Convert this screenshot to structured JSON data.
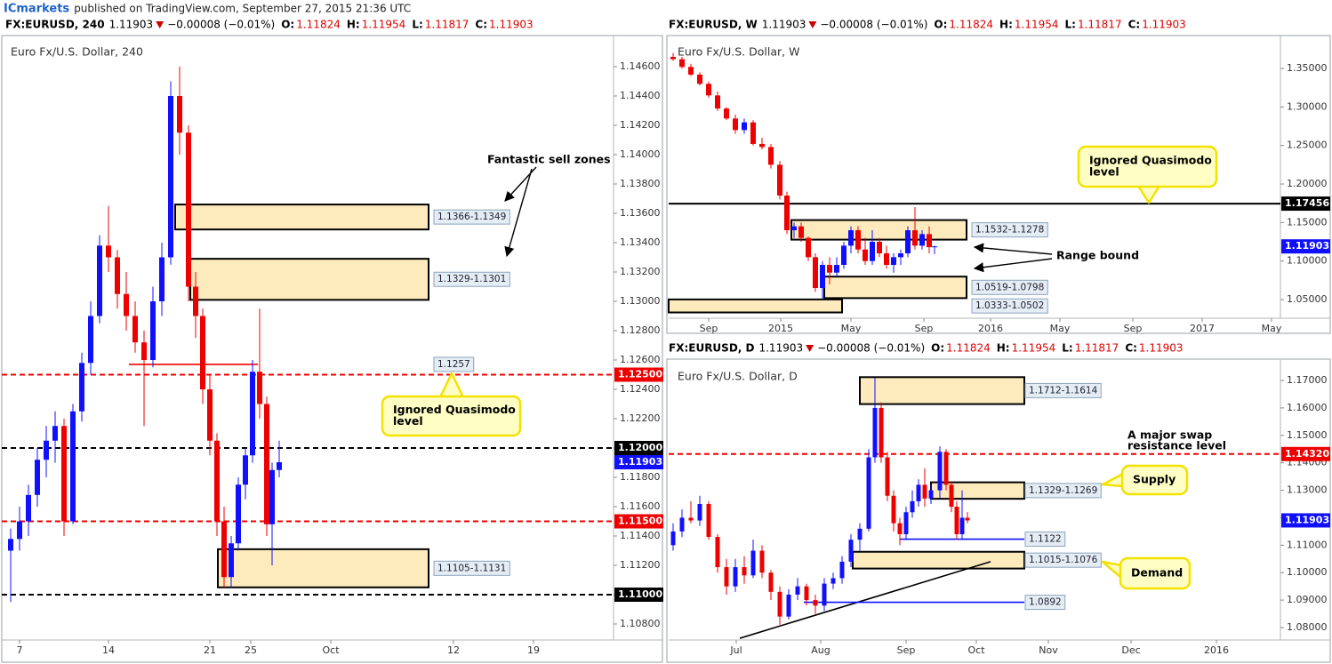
{
  "header": {
    "publisher": "ICmarkets",
    "text": "published on TradingView.com, September 27, 2015 21:36 UTC"
  },
  "chart_data": [
    {
      "type": "candlestick",
      "symbol": "FX:EURUSD, 240",
      "last": 1.11903,
      "change": "−0.00008 (−0.01%)",
      "ohlc": [
        {
          "label": "O:",
          "value": 1.11824
        },
        {
          "label": "H:",
          "value": 1.11954
        },
        {
          "label": "L:",
          "value": 1.11817
        },
        {
          "label": "C:",
          "value": 1.11903
        }
      ],
      "title": "Euro Fx/U.S. Dollar, 240",
      "colors": {
        "up": "#1010ff",
        "down": "#ee0000",
        "last": "#1010ff"
      },
      "xlim": [
        0,
        688
      ],
      "xticks": [
        {
          "value": 20,
          "label": "7"
        },
        {
          "value": 120,
          "label": "14"
        },
        {
          "value": 234,
          "label": "21"
        },
        {
          "value": 280,
          "label": "25"
        },
        {
          "value": 370,
          "label": "Oct"
        },
        {
          "value": 508,
          "label": "12"
        },
        {
          "value": 598,
          "label": "19"
        }
      ],
      "ylim": [
        1.10691,
        1.14812
      ],
      "yticks": [
        {
          "value": 1.108,
          "label": "1.10800"
        },
        {
          "value": 1.11,
          "label": "1.11000"
        },
        {
          "value": 1.112,
          "label": "1.11200"
        },
        {
          "value": 1.114,
          "label": "1.11400"
        },
        {
          "value": 1.116,
          "label": "1.11600"
        },
        {
          "value": 1.118,
          "label": "1.11800"
        },
        {
          "value": 1.12,
          "label": "1.12000"
        },
        {
          "value": 1.122,
          "label": "1.12200"
        },
        {
          "value": 1.124,
          "label": "1.12400"
        },
        {
          "value": 1.126,
          "label": "1.12600"
        },
        {
          "value": 1.128,
          "label": "1.12800"
        },
        {
          "value": 1.13,
          "label": "1.13000"
        },
        {
          "value": 1.132,
          "label": "1.13200"
        },
        {
          "value": 1.134,
          "label": "1.13400"
        },
        {
          "value": 1.136,
          "label": "1.13600"
        },
        {
          "value": 1.138,
          "label": "1.13800"
        },
        {
          "value": 1.14,
          "label": "1.14000"
        },
        {
          "value": 1.142,
          "label": "1.14200"
        },
        {
          "value": 1.144,
          "label": "1.14400"
        },
        {
          "value": 1.146,
          "label": "1.14600"
        }
      ],
      "x": [
        10,
        20,
        30,
        40,
        50,
        60,
        70,
        80,
        90,
        100,
        110,
        120,
        130,
        140,
        150,
        160,
        170,
        180,
        190,
        200,
        210,
        218,
        226,
        234,
        242,
        250,
        258,
        266,
        274,
        282,
        290,
        298,
        304,
        312
      ],
      "open": [
        1.113,
        1.1138,
        1.115,
        1.1168,
        1.1192,
        1.1205,
        1.1215,
        1.115,
        1.1225,
        1.1258,
        1.129,
        1.1338,
        1.133,
        1.1305,
        1.129,
        1.1272,
        1.126,
        1.13,
        1.133,
        1.144,
        1.1415,
        1.131,
        1.129,
        1.124,
        1.1205,
        1.115,
        1.1112,
        1.1135,
        1.1175,
        1.1195,
        1.1252,
        1.123,
        1.1148,
        1.1185
      ],
      "high": [
        1.1145,
        1.116,
        1.1175,
        1.12,
        1.1215,
        1.1225,
        1.122,
        1.123,
        1.1265,
        1.13,
        1.1345,
        1.1365,
        1.1335,
        1.132,
        1.13,
        1.128,
        1.131,
        1.134,
        1.145,
        1.146,
        1.142,
        1.132,
        1.1295,
        1.125,
        1.121,
        1.116,
        1.114,
        1.118,
        1.12,
        1.126,
        1.1295,
        1.1235,
        1.119,
        1.1205
      ],
      "low": [
        1.1095,
        1.113,
        1.114,
        1.116,
        1.118,
        1.119,
        1.114,
        1.1148,
        1.1218,
        1.125,
        1.1285,
        1.132,
        1.1295,
        1.128,
        1.1265,
        1.1215,
        1.1255,
        1.129,
        1.1325,
        1.14,
        1.13,
        1.1275,
        1.123,
        1.1195,
        1.114,
        1.1105,
        1.1105,
        1.113,
        1.1165,
        1.119,
        1.122,
        1.114,
        1.112,
        1.118
      ],
      "close": [
        1.1138,
        1.115,
        1.1168,
        1.1192,
        1.1205,
        1.1215,
        1.115,
        1.1225,
        1.1258,
        1.129,
        1.1338,
        1.133,
        1.1305,
        1.129,
        1.1272,
        1.126,
        1.13,
        1.133,
        1.144,
        1.1415,
        1.131,
        1.129,
        1.124,
        1.1205,
        1.115,
        1.1112,
        1.1135,
        1.1175,
        1.1195,
        1.1252,
        1.123,
        1.1148,
        1.1185,
        1.11903
      ],
      "zones": [
        {
          "label": "1.1366-1.1349",
          "x": [
            195,
            480
          ],
          "y": [
            1.1366,
            1.1349
          ]
        },
        {
          "label": "1.1329-1.1301",
          "x": [
            212,
            480
          ],
          "y": [
            1.1329,
            1.1301
          ]
        },
        {
          "label": "1.1105-1.1131",
          "x": [
            243,
            480
          ],
          "y": [
            1.1105,
            1.1131
          ]
        }
      ],
      "levels": [
        {
          "value": 1.125,
          "label": "1.12500",
          "color": "#ee0000",
          "style": "dashed"
        },
        {
          "value": 1.12,
          "label": "1.12000",
          "color": "#000000",
          "style": "dashed"
        },
        {
          "value": 1.115,
          "label": "1.11500",
          "color": "#ee0000",
          "style": "dashed"
        },
        {
          "value": 1.11,
          "label": "1.11000",
          "color": "#000000",
          "style": "dashed"
        }
      ],
      "segments": [
        {
          "value": 1.1257,
          "x": [
            143,
            288
          ],
          "color": "#ee0000"
        }
      ],
      "trendlines": [],
      "annotations": [
        {
          "text": [
            "Fantastic sell zones"
          ],
          "style": "plain"
        },
        {
          "text": [
            "Ignored Quasimodo",
            "level"
          ],
          "style": "callout"
        }
      ]
    },
    {
      "type": "candlestick",
      "symbol": "FX:EURUSD, W",
      "last": 1.11903,
      "change": "−0.00008 (−0.01%)",
      "ohlc": [
        {
          "label": "O:",
          "value": 1.11824
        },
        {
          "label": "H:",
          "value": 1.11954
        },
        {
          "label": "L:",
          "value": 1.11817
        },
        {
          "label": "C:",
          "value": 1.11903
        }
      ],
      "title": "Euro Fx/U.S. Dollar, W",
      "colors": {
        "up": "#1010ff",
        "down": "#ee0000",
        "last": "#1010ff"
      },
      "xlim": [
        0,
        688
      ],
      "xticks": [
        {
          "value": 45,
          "label": "Sep"
        },
        {
          "value": 126,
          "label": "2015"
        },
        {
          "value": 205,
          "label": "May"
        },
        {
          "value": 287,
          "label": "Sep"
        },
        {
          "value": 362,
          "label": "2016"
        },
        {
          "value": 440,
          "label": "May"
        },
        {
          "value": 522,
          "label": "Sep"
        },
        {
          "value": 600,
          "label": "2017"
        },
        {
          "value": 678,
          "label": "May"
        }
      ],
      "ylim": [
        1.0258,
        1.3927
      ],
      "yticks": [
        {
          "value": 1.05,
          "label": "1.05000"
        },
        {
          "value": 1.1,
          "label": "1.10000"
        },
        {
          "value": 1.15,
          "label": "1.15000"
        },
        {
          "value": 1.2,
          "label": "1.20000"
        },
        {
          "value": 1.25,
          "label": "1.25000"
        },
        {
          "value": 1.3,
          "label": "1.30000"
        },
        {
          "value": 1.35,
          "label": "1.35000"
        }
      ],
      "x": [
        5,
        15,
        25,
        35,
        45,
        55,
        65,
        75,
        85,
        95,
        105,
        115,
        125,
        133,
        141,
        149,
        157,
        165,
        173,
        181,
        189,
        197,
        205,
        213,
        221,
        229,
        237,
        245,
        253,
        261,
        269,
        277,
        285,
        293,
        299
      ],
      "open": [
        1.365,
        1.362,
        1.352,
        1.342,
        1.33,
        1.315,
        1.298,
        1.285,
        1.27,
        1.28,
        1.252,
        1.248,
        1.225,
        1.185,
        1.14,
        1.145,
        1.13,
        1.105,
        1.065,
        1.095,
        1.085,
        1.095,
        1.12,
        1.14,
        1.115,
        1.1,
        1.125,
        1.11,
        1.095,
        1.105,
        1.11,
        1.14,
        1.12,
        1.135,
        1.118
      ],
      "high": [
        1.37,
        1.365,
        1.356,
        1.345,
        1.333,
        1.32,
        1.3,
        1.29,
        1.285,
        1.283,
        1.26,
        1.252,
        1.23,
        1.19,
        1.15,
        1.15,
        1.132,
        1.11,
        1.1,
        1.105,
        1.105,
        1.125,
        1.145,
        1.145,
        1.13,
        1.14,
        1.13,
        1.12,
        1.11,
        1.115,
        1.145,
        1.17,
        1.14,
        1.145,
        1.12
      ],
      "low": [
        1.36,
        1.35,
        1.34,
        1.328,
        1.312,
        1.295,
        1.283,
        1.265,
        1.265,
        1.25,
        1.245,
        1.22,
        1.18,
        1.135,
        1.13,
        1.125,
        1.1,
        1.06,
        1.05,
        1.07,
        1.08,
        1.09,
        1.11,
        1.11,
        1.095,
        1.095,
        1.105,
        1.09,
        1.085,
        1.095,
        1.105,
        1.115,
        1.115,
        1.11,
        1.109
      ],
      "close": [
        1.362,
        1.352,
        1.342,
        1.33,
        1.315,
        1.298,
        1.285,
        1.27,
        1.28,
        1.252,
        1.248,
        1.225,
        1.185,
        1.14,
        1.145,
        1.13,
        1.105,
        1.065,
        1.095,
        1.085,
        1.095,
        1.12,
        1.14,
        1.115,
        1.1,
        1.125,
        1.11,
        1.095,
        1.105,
        1.11,
        1.14,
        1.12,
        1.135,
        1.118,
        1.11903
      ],
      "zones": [
        {
          "label": "1.1532-1.1278",
          "x": [
            138,
            335
          ],
          "y": [
            1.1532,
            1.1278
          ]
        },
        {
          "label": "1.0519-1.0798",
          "x": [
            175,
            335
          ],
          "y": [
            1.0519,
            1.0798
          ]
        },
        {
          "label": "1.0333-1.0502",
          "x": [
            0,
            195
          ],
          "y": [
            1.0333,
            1.0502
          ]
        }
      ],
      "levels": [
        {
          "value": 1.17456,
          "color": "#000000",
          "style": "solid"
        }
      ],
      "segments": [],
      "trendlines": [],
      "annotations": [
        {
          "text": [
            "Ignored Quasimodo",
            "level"
          ],
          "style": "callout"
        },
        {
          "text": [
            "Range bound"
          ],
          "style": "plain"
        }
      ]
    },
    {
      "type": "candlestick",
      "symbol": "FX:EURUSD, D",
      "last": 1.11903,
      "change": "−0.00008 (−0.01%)",
      "ohlc": [
        {
          "label": "O:",
          "value": 1.11824
        },
        {
          "label": "H:",
          "value": 1.11954
        },
        {
          "label": "L:",
          "value": 1.11817
        },
        {
          "label": "C:",
          "value": 1.11903
        }
      ],
      "title": "Euro Fx/U.S. Dollar, D",
      "colors": {
        "up": "#1010ff",
        "down": "#ee0000",
        "last": "#1010ff"
      },
      "xlim": [
        0,
        688
      ],
      "xticks": [
        {
          "value": 76,
          "label": "Jul"
        },
        {
          "value": 171,
          "label": "Aug"
        },
        {
          "value": 267,
          "label": "Sep"
        },
        {
          "value": 346,
          "label": "Oct"
        },
        {
          "value": 427,
          "label": "Nov"
        },
        {
          "value": 520,
          "label": "Dec"
        },
        {
          "value": 616,
          "label": "2016"
        }
      ],
      "ylim": [
        1.07547,
        1.17745
      ],
      "yticks": [
        {
          "value": 1.08,
          "label": "1.08000"
        },
        {
          "value": 1.09,
          "label": "1.09000"
        },
        {
          "value": 1.1,
          "label": "1.10000"
        },
        {
          "value": 1.11,
          "label": "1.11000"
        },
        {
          "value": 1.12,
          "label": "1.12000"
        },
        {
          "value": 1.13,
          "label": "1.13000"
        },
        {
          "value": 1.14,
          "label": "1.14000"
        },
        {
          "value": 1.15,
          "label": "1.15000"
        },
        {
          "value": 1.16,
          "label": "1.16000"
        },
        {
          "value": 1.17,
          "label": "1.17000"
        }
      ],
      "x": [
        5,
        15,
        25,
        35,
        45,
        55,
        65,
        75,
        85,
        95,
        105,
        115,
        125,
        135,
        145,
        155,
        165,
        175,
        185,
        195,
        205,
        215,
        225,
        232,
        239,
        246,
        253,
        260,
        267,
        274,
        281,
        288,
        295,
        305,
        312,
        318,
        324,
        330,
        336
      ],
      "open": [
        1.11,
        1.115,
        1.12,
        1.119,
        1.125,
        1.113,
        1.102,
        1.095,
        1.102,
        1.099,
        1.108,
        1.1,
        1.093,
        1.084,
        1.092,
        1.095,
        1.09,
        1.088,
        1.096,
        1.098,
        1.104,
        1.112,
        1.116,
        1.142,
        1.16,
        1.142,
        1.128,
        1.118,
        1.114,
        1.122,
        1.126,
        1.132,
        1.127,
        1.13,
        1.144,
        1.132,
        1.124,
        1.114,
        1.12
      ],
      "high": [
        1.118,
        1.123,
        1.126,
        1.128,
        1.126,
        1.114,
        1.105,
        1.105,
        1.106,
        1.112,
        1.11,
        1.101,
        1.095,
        1.094,
        1.098,
        1.096,
        1.092,
        1.098,
        1.1,
        1.106,
        1.114,
        1.118,
        1.145,
        1.171,
        1.162,
        1.144,
        1.13,
        1.12,
        1.124,
        1.13,
        1.134,
        1.138,
        1.132,
        1.146,
        1.145,
        1.133,
        1.126,
        1.13,
        1.122
      ],
      "low": [
        1.108,
        1.113,
        1.118,
        1.117,
        1.112,
        1.1,
        1.092,
        1.093,
        1.096,
        1.098,
        1.098,
        1.09,
        1.081,
        1.083,
        1.09,
        1.088,
        1.085,
        1.086,
        1.094,
        1.096,
        1.102,
        1.108,
        1.115,
        1.14,
        1.14,
        1.126,
        1.115,
        1.11,
        1.112,
        1.12,
        1.124,
        1.124,
        1.125,
        1.127,
        1.13,
        1.122,
        1.112,
        1.112,
        1.118
      ],
      "close": [
        1.115,
        1.12,
        1.119,
        1.125,
        1.113,
        1.102,
        1.095,
        1.102,
        1.099,
        1.108,
        1.1,
        1.093,
        1.084,
        1.092,
        1.095,
        1.09,
        1.088,
        1.096,
        1.098,
        1.104,
        1.112,
        1.116,
        1.142,
        1.16,
        1.142,
        1.128,
        1.118,
        1.114,
        1.122,
        1.126,
        1.132,
        1.127,
        1.13,
        1.144,
        1.132,
        1.124,
        1.114,
        1.12,
        1.11903
      ],
      "zones": [
        {
          "label": "1.1712-1.1614",
          "x": [
            215,
            400
          ],
          "y": [
            1.1712,
            1.1614
          ]
        },
        {
          "label": "1.1329-1.1269",
          "x": [
            295,
            400
          ],
          "y": [
            1.1329,
            1.1269
          ]
        },
        {
          "label": "1.1015-1.1076",
          "x": [
            207,
            400
          ],
          "y": [
            1.1015,
            1.1076
          ]
        }
      ],
      "levels": [
        {
          "value": 1.1432,
          "label": "1.14320",
          "color": "#ee0000",
          "style": "dashed"
        }
      ],
      "segments": [
        {
          "value": 1.1122,
          "x": [
            260,
            400
          ],
          "color": "#1010ff"
        },
        {
          "value": 1.0892,
          "x": [
            152,
            400
          ],
          "color": "#1010ff"
        }
      ],
      "trendlines": [
        {
          "x": [
            80,
            362
          ],
          "y": [
            1.0761,
            1.104
          ]
        }
      ],
      "annotations": [
        {
          "text": [
            "A major swap",
            "resistance level"
          ],
          "style": "plain"
        },
        {
          "text": [
            "Supply"
          ],
          "style": "callout"
        },
        {
          "text": [
            "Demand"
          ],
          "style": "callout"
        }
      ]
    }
  ]
}
